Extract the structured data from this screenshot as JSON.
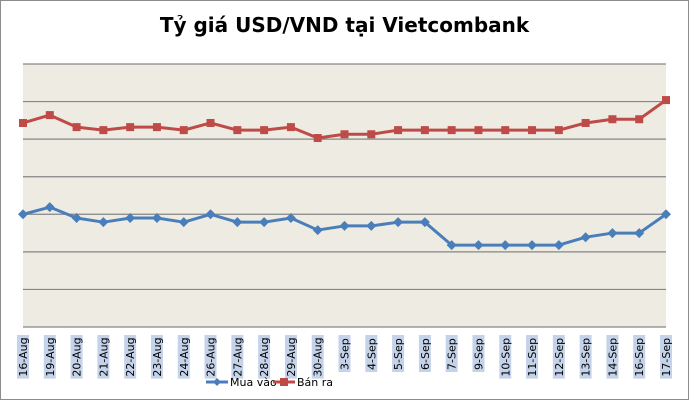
{
  "chart_data": {
    "type": "line",
    "title": "Tỷ giá USD/VND tại Vietcombank",
    "xlabel": "",
    "ylabel": "",
    "y_axis_labels_shown": false,
    "y_units": "gridline intervals above plot bottom (no y-axis values printed)",
    "ylim": [
      0,
      7
    ],
    "grid": true,
    "legend": "bottom",
    "plot_background": "#eeebe2",
    "categories": [
      "16-Aug",
      "19-Aug",
      "20-Aug",
      "21-Aug",
      "22-Aug",
      "23-Aug",
      "24-Aug",
      "26-Aug",
      "27-Aug",
      "28-Aug",
      "29-Aug",
      "30-Aug",
      "3-Sep",
      "4-Sep",
      "5-Sep",
      "6-Sep",
      "7-Sep",
      "9-Sep",
      "10-Sep",
      "11-Sep",
      "12-Sep",
      "13-Sep",
      "14-Sep",
      "16-Sep",
      "17-Sep"
    ],
    "series": [
      {
        "name": "Mua vào",
        "color": "#4a7ebb",
        "marker": "diamond",
        "values": [
          3.0,
          3.19,
          2.9,
          2.79,
          2.9,
          2.9,
          2.79,
          3.0,
          2.79,
          2.79,
          2.9,
          2.58,
          2.69,
          2.69,
          2.79,
          2.79,
          2.18,
          2.18,
          2.18,
          2.18,
          2.18,
          2.39,
          2.5,
          2.5,
          3.0
        ]
      },
      {
        "name": "Bán ra",
        "color": "#be4b48",
        "marker": "square",
        "values": [
          5.43,
          5.64,
          5.32,
          5.24,
          5.32,
          5.32,
          5.24,
          5.43,
          5.24,
          5.24,
          5.32,
          5.03,
          5.13,
          5.13,
          5.24,
          5.24,
          5.24,
          5.24,
          5.24,
          5.24,
          5.24,
          5.43,
          5.53,
          5.53,
          6.04
        ]
      }
    ]
  }
}
